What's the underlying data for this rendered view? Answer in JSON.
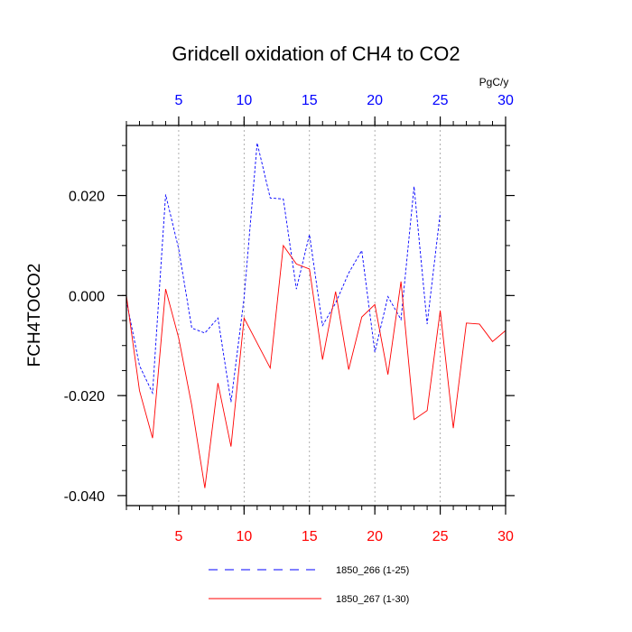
{
  "chart_data": {
    "type": "line",
    "title": "Gridcell oxidation of CH4 to CO2",
    "ylabel": "FCH4TOCO2",
    "units_label": "PgC/y",
    "xlim": [
      1,
      30
    ],
    "ylim": [
      -0.042,
      0.034
    ],
    "y_ticks": [
      {
        "value": 0.02,
        "label": "0.020"
      },
      {
        "value": 0.0,
        "label": "0.000"
      },
      {
        "value": -0.02,
        "label": "-0.020"
      },
      {
        "value": -0.04,
        "label": "-0.040"
      }
    ],
    "bottom_axis": {
      "color": "#ff0000",
      "ticks": [
        {
          "value": 5,
          "label": "5"
        },
        {
          "value": 10,
          "label": "10"
        },
        {
          "value": 15,
          "label": "15"
        },
        {
          "value": 20,
          "label": "20"
        },
        {
          "value": 25,
          "label": "25"
        },
        {
          "value": 30,
          "label": "30"
        }
      ]
    },
    "top_axis": {
      "color": "#0000ff",
      "ticks": [
        {
          "value": 5,
          "label": "5"
        },
        {
          "value": 10,
          "label": "10"
        },
        {
          "value": 15,
          "label": "15"
        },
        {
          "value": 20,
          "label": "20"
        },
        {
          "value": 25,
          "label": "25"
        },
        {
          "value": 30,
          "label": "30"
        }
      ]
    },
    "gridlines_x": [
      5,
      10,
      15,
      20,
      25
    ],
    "series": [
      {
        "name": "1850_266 (1-25)",
        "color": "#0000ff",
        "dash": "dashed",
        "x": [
          1,
          2,
          3,
          4,
          5,
          6,
          7,
          8,
          9,
          10,
          11,
          12,
          13,
          14,
          15,
          16,
          17,
          18,
          19,
          20,
          21,
          22,
          23,
          24,
          25
        ],
        "values": [
          -0.001,
          -0.014,
          -0.0195,
          0.0202,
          0.0093,
          -0.0065,
          -0.0075,
          -0.0045,
          -0.0213,
          -0.0005,
          0.0305,
          0.0195,
          0.0193,
          0.0013,
          0.0122,
          -0.006,
          -0.0015,
          0.0045,
          0.009,
          -0.0113,
          -0.0002,
          -0.0048,
          0.0218,
          -0.0057,
          0.0165
        ]
      },
      {
        "name": "1850_267 (1-30)",
        "color": "#ff0000",
        "dash": "solid",
        "x": [
          1,
          2,
          3,
          4,
          5,
          6,
          7,
          8,
          9,
          10,
          11,
          12,
          13,
          14,
          15,
          16,
          17,
          18,
          19,
          20,
          21,
          22,
          23,
          24,
          25,
          26,
          27,
          28,
          29,
          30
        ],
        "values": [
          0.0,
          -0.019,
          -0.0285,
          0.0013,
          -0.0085,
          -0.022,
          -0.0385,
          -0.0175,
          -0.0302,
          -0.0045,
          -0.0095,
          -0.0145,
          0.01,
          0.0063,
          0.0053,
          -0.0128,
          0.0008,
          -0.0148,
          -0.0043,
          -0.0018,
          -0.0158,
          0.0028,
          -0.0248,
          -0.023,
          -0.003,
          -0.0265,
          -0.0055,
          -0.0057,
          -0.0092,
          -0.007
        ]
      }
    ],
    "legend_position": "bottom-center"
  }
}
